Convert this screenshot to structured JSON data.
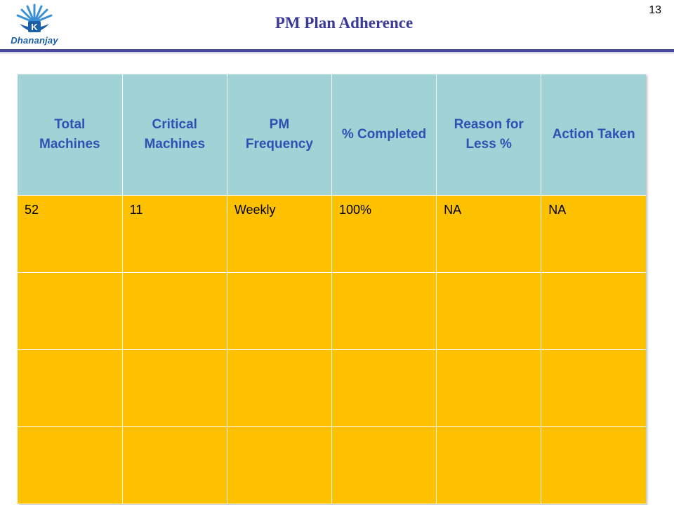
{
  "header": {
    "logo_text": "Dhananjay",
    "title": "PM Plan Adherence",
    "page_number": "13"
  },
  "colors": {
    "title": "#3a3a9a",
    "rule": "#4a4a9a",
    "table_header_bg": "#a0d2d6",
    "table_header_text": "#2d52b4",
    "table_body_bg": "#fec100",
    "logo": "#1a5fa8"
  },
  "table": {
    "columns": [
      "Total Machines",
      "Critical Machines",
      "PM Frequency",
      "% Completed",
      "Reason for Less %",
      "Action Taken"
    ],
    "rows": [
      [
        "52",
        "11",
        "Weekly",
        "100%",
        "NA",
        "NA"
      ],
      [
        "",
        "",
        "",
        "",
        "",
        ""
      ],
      [
        "",
        "",
        "",
        "",
        "",
        ""
      ],
      [
        "",
        "",
        "",
        "",
        "",
        ""
      ]
    ]
  }
}
